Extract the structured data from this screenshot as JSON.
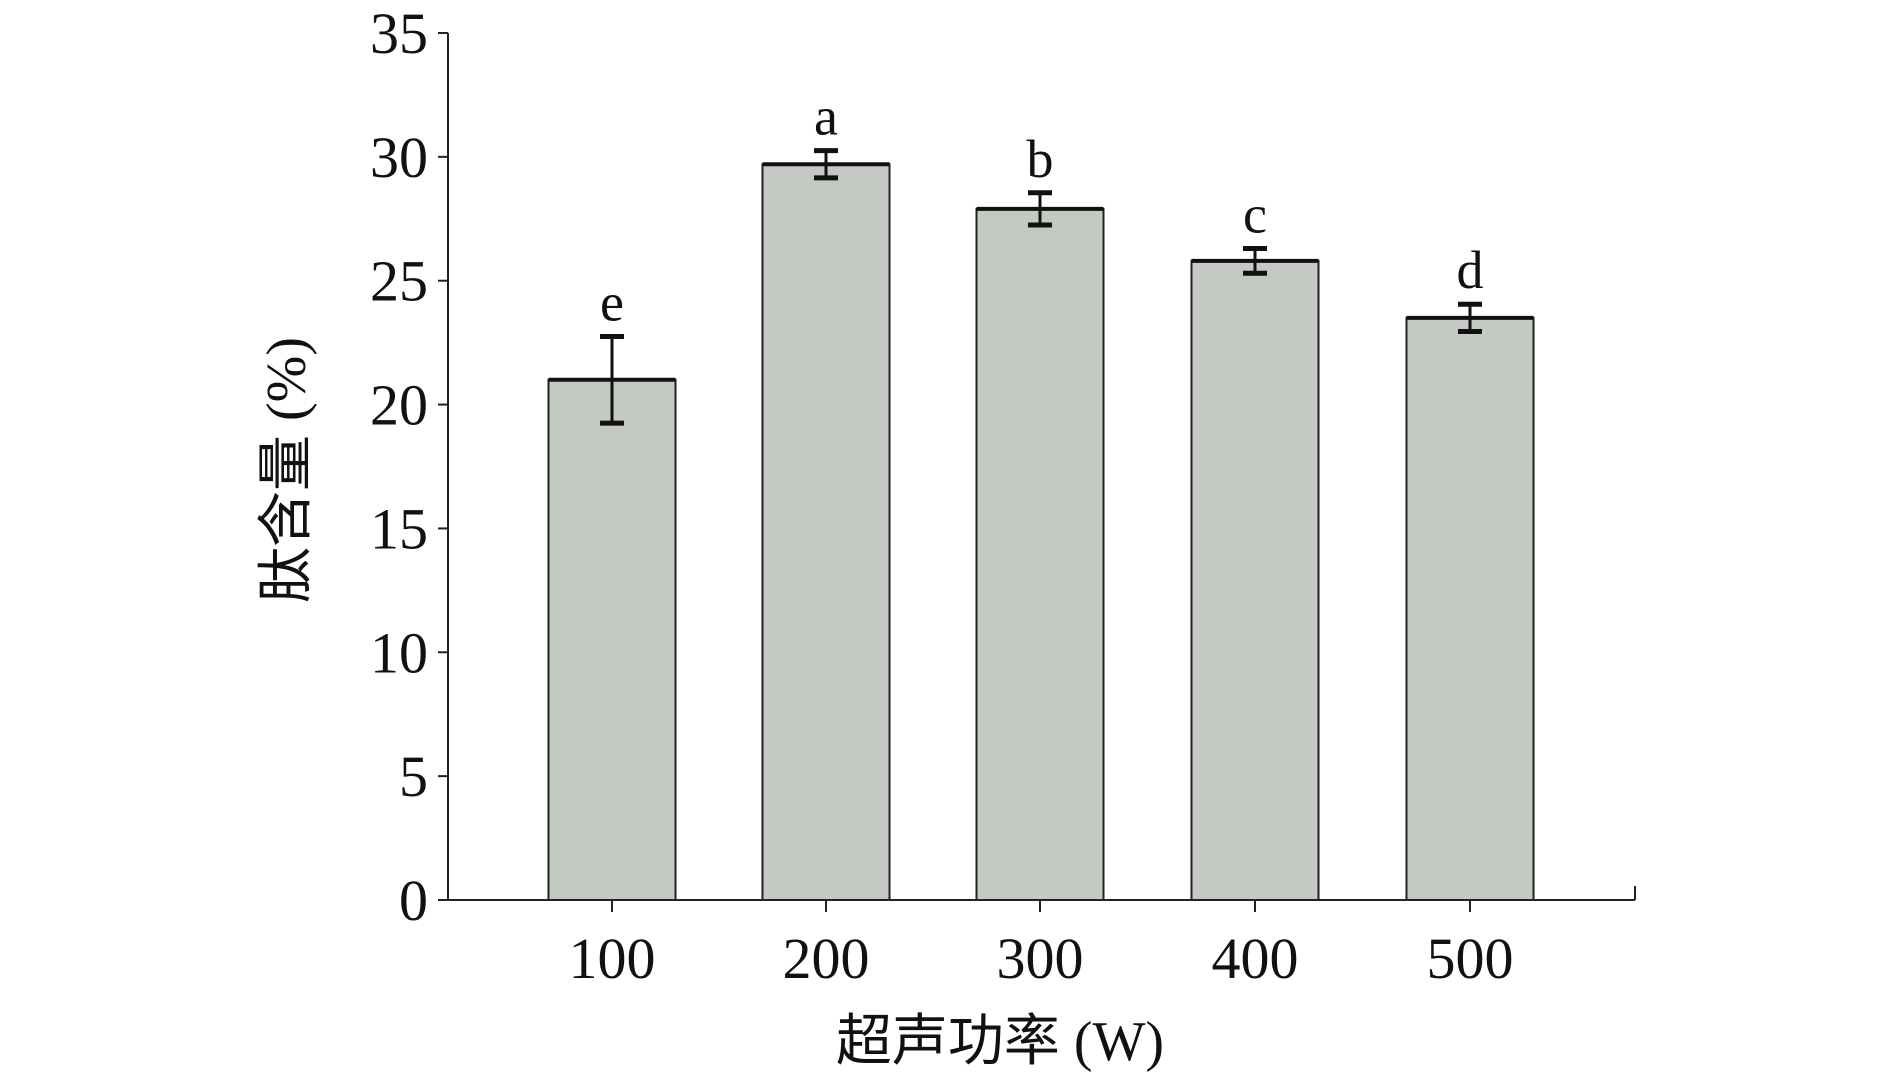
{
  "chart_data": {
    "type": "bar",
    "title": "",
    "xlabel": "超声功率 (W)",
    "ylabel": "肽含量 (%)",
    "categories": [
      "100",
      "200",
      "300",
      "400",
      "500"
    ],
    "values": [
      21.0,
      29.7,
      27.9,
      25.8,
      23.5
    ],
    "errors": [
      1.75,
      0.55,
      0.65,
      0.5,
      0.55
    ],
    "significance_labels": [
      "e",
      "a",
      "b",
      "c",
      "d"
    ],
    "ylim": [
      0,
      35
    ],
    "yticks": [
      0,
      5,
      10,
      15,
      20,
      25,
      30,
      35
    ],
    "grid": false,
    "bar_color": "#c5c9c4",
    "bar_edge_color": "#222222"
  }
}
